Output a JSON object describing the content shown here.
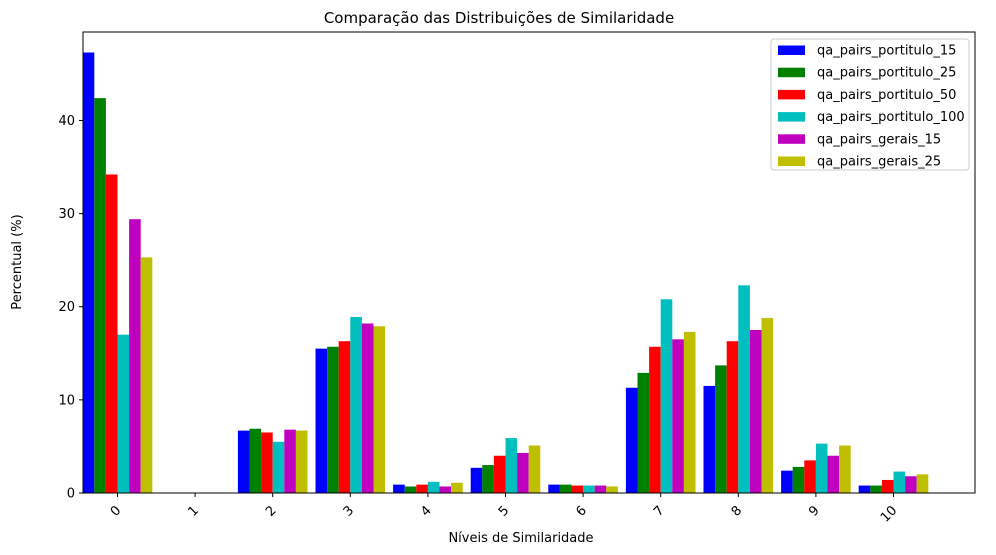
{
  "chart_data": {
    "type": "bar",
    "title": "Comparação das Distribuições de Similaridade",
    "xlabel": "Níveis de Similaridade",
    "ylabel": "Percentual (%)",
    "categories": [
      "0",
      "1",
      "2",
      "3",
      "4",
      "5",
      "6",
      "7",
      "8",
      "9",
      "10"
    ],
    "ylim": [
      0,
      49.5
    ],
    "yticks": [
      0,
      10,
      20,
      30,
      40
    ],
    "legend_position": "top-right",
    "series": [
      {
        "name": "qa_pairs_portitulo_15",
        "color": "#0000ff",
        "values": [
          47.3,
          0,
          6.7,
          15.5,
          0.9,
          2.7,
          0.9,
          11.3,
          11.5,
          2.4,
          0.8
        ]
      },
      {
        "name": "qa_pairs_portitulo_25",
        "color": "#008000",
        "values": [
          42.4,
          0,
          6.9,
          15.7,
          0.7,
          3.0,
          0.9,
          12.9,
          13.7,
          2.8,
          0.8
        ]
      },
      {
        "name": "qa_pairs_portitulo_50",
        "color": "#ff0000",
        "values": [
          34.2,
          0,
          6.5,
          16.3,
          0.9,
          4.0,
          0.8,
          15.7,
          16.3,
          3.5,
          1.4
        ]
      },
      {
        "name": "qa_pairs_portitulo_100",
        "color": "#00bfbf",
        "values": [
          17.0,
          0,
          5.5,
          18.9,
          1.2,
          5.9,
          0.8,
          20.8,
          22.3,
          5.3,
          2.3
        ]
      },
      {
        "name": "qa_pairs_gerais_15",
        "color": "#bf00bf",
        "values": [
          29.4,
          0,
          6.8,
          18.2,
          0.7,
          4.3,
          0.8,
          16.5,
          17.5,
          4.0,
          1.8
        ]
      },
      {
        "name": "qa_pairs_gerais_25",
        "color": "#bfbf00",
        "values": [
          25.3,
          0,
          6.7,
          17.9,
          1.1,
          5.1,
          0.7,
          17.3,
          18.8,
          5.1,
          2.0
        ]
      }
    ]
  }
}
